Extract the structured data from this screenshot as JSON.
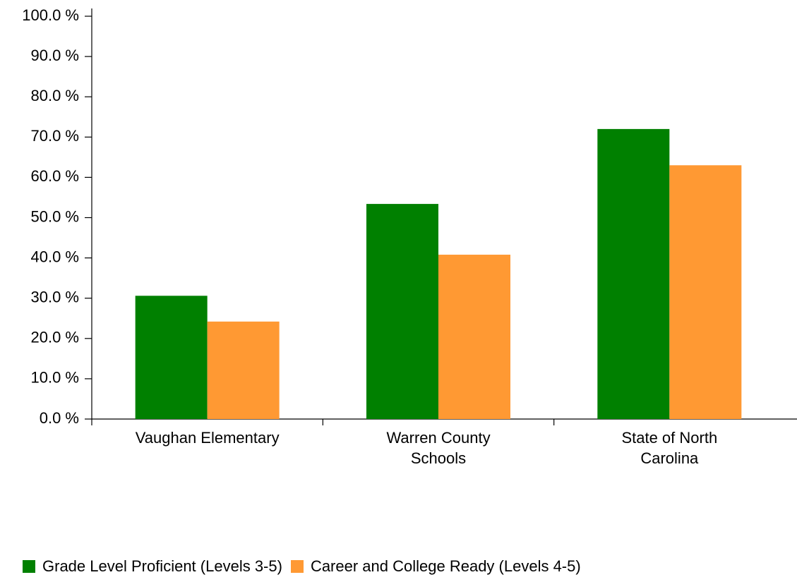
{
  "chart_data": {
    "type": "bar",
    "categories": [
      "Vaughan Elementary",
      "Warren County Schools",
      "State of North Carolina"
    ],
    "series": [
      {
        "name": "Grade Level Proficient (Levels 3-5)",
        "color": "#008000",
        "values": [
          30.6,
          53.4,
          72.0
        ]
      },
      {
        "name": "Career and College Ready (Levels 4-5)",
        "color": "#ff9933",
        "values": [
          24.2,
          40.8,
          63.0
        ]
      }
    ],
    "ylim": [
      0,
      100
    ],
    "yticks": [
      {
        "value": 0,
        "label": "0.0 %"
      },
      {
        "value": 10,
        "label": "10.0 %"
      },
      {
        "value": 20,
        "label": "20.0 %"
      },
      {
        "value": 30,
        "label": "30.0 %"
      },
      {
        "value": 40,
        "label": "40.0 %"
      },
      {
        "value": 50,
        "label": "50.0 %"
      },
      {
        "value": 60,
        "label": "60.0 %"
      },
      {
        "value": 70,
        "label": "70.0 %"
      },
      {
        "value": 80,
        "label": "80.0 %"
      },
      {
        "value": 90,
        "label": "90.0 %"
      },
      {
        "value": 100,
        "label": "100.0 %"
      }
    ],
    "grid": false,
    "legend": "bottom"
  }
}
